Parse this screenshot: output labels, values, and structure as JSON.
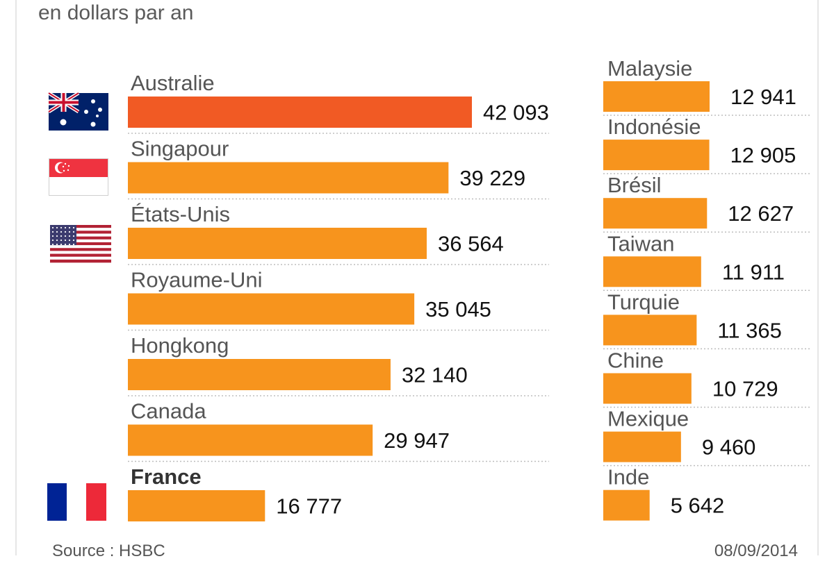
{
  "subtitle": "en dollars par an",
  "chart_data": {
    "type": "bar",
    "orientation": "horizontal",
    "subtitle": "en dollars par an",
    "unit": "dollars par an",
    "highlight_color": "#f15a24",
    "bar_color": "#f7941d",
    "groups": [
      {
        "name": "left",
        "categories": [
          "Australie",
          "Singapour",
          "États-Unis",
          "Royaume-Uni",
          "Hongkong",
          "Canada",
          "France"
        ],
        "values": [
          42093,
          39229,
          36564,
          35045,
          32140,
          29947,
          16777
        ],
        "value_labels": [
          "42 093",
          "39 229",
          "36 564",
          "35 045",
          "32 140",
          "29 947",
          "16 777"
        ],
        "highlighted": "Australie",
        "bold": "France",
        "flags": {
          "Australie": "australia-flag",
          "Singapour": "singapore-flag",
          "États-Unis": "usa-flag",
          "France": "france-flag"
        }
      },
      {
        "name": "right",
        "categories": [
          "Malaysie",
          "Indonésie",
          "Brésil",
          "Taiwan",
          "Turquie",
          "Chine",
          "Mexique",
          "Inde"
        ],
        "values": [
          12941,
          12905,
          12627,
          11911,
          11365,
          10729,
          9460,
          5642
        ],
        "value_labels": [
          "12 941",
          "12 905",
          "12 627",
          "11 911",
          "11 365",
          "10 729",
          "9 460",
          "5 642"
        ]
      }
    ]
  },
  "footer": {
    "source": "Source : HSBC",
    "date": "08/09/2014"
  }
}
